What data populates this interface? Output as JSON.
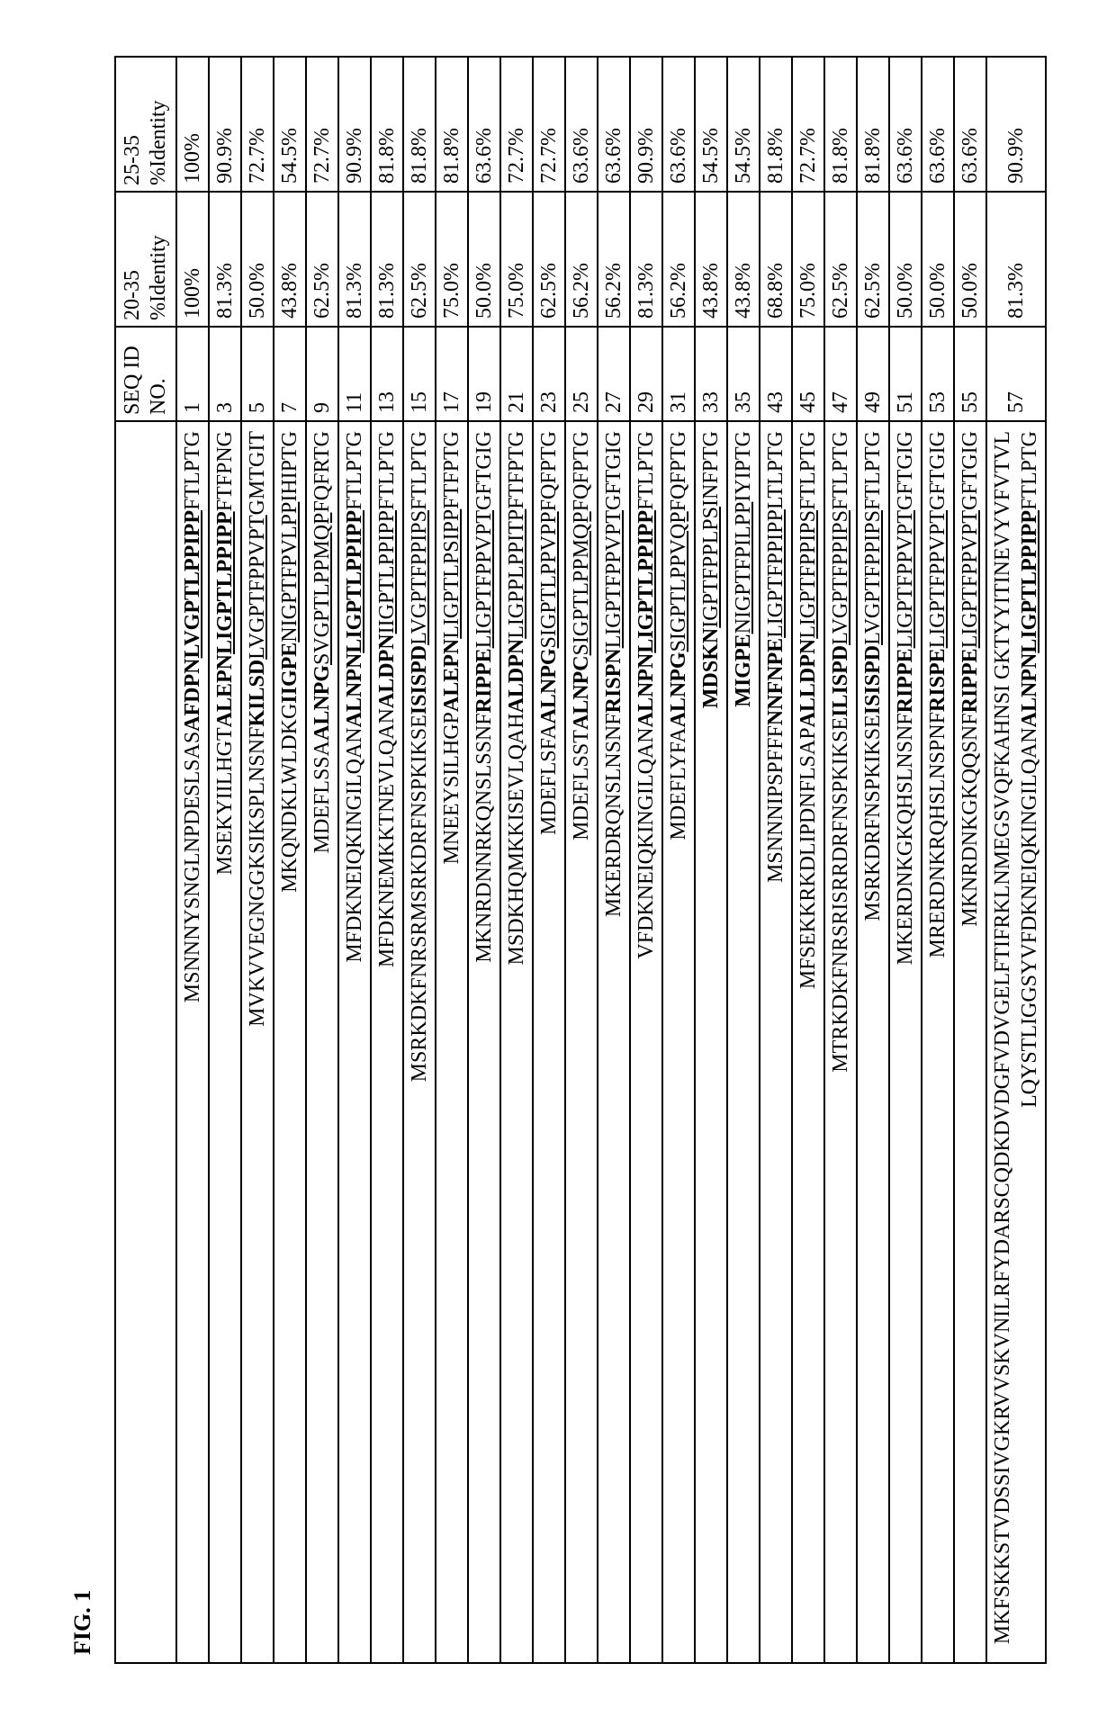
{
  "figure_title": "FIG. 1",
  "table": {
    "columns": [
      {
        "key": "sequence",
        "label": ""
      },
      {
        "key": "seq_id",
        "label": "SEQ ID NO."
      },
      {
        "key": "pct_20_35",
        "label": "20-35 %Identity"
      },
      {
        "key": "pct_25_35",
        "label": "25-35 %Identity"
      }
    ],
    "rows": [
      {
        "seq_id": "1",
        "pct_20_35": "100%",
        "pct_25_35": "100%",
        "segments": [
          {
            "text": "MSNNNYSNGLNPDESLSAS",
            "style": ""
          },
          {
            "text": "AFDPN",
            "style": "bold"
          },
          {
            "text": "LVGPTLPPIPP",
            "style": "bu"
          },
          {
            "text": "FTLPTG",
            "style": ""
          }
        ]
      },
      {
        "seq_id": "3",
        "pct_20_35": "81.3%",
        "pct_25_35": "90.9%",
        "segments": [
          {
            "text": "MSEKYIILHGT",
            "style": ""
          },
          {
            "text": "ALEPN",
            "style": "bold"
          },
          {
            "text": "LIGPTLPPIPP",
            "style": "bu"
          },
          {
            "text": "FTFPNG",
            "style": ""
          }
        ]
      },
      {
        "seq_id": "5",
        "pct_20_35": "50.0%",
        "pct_25_35": "72.7%",
        "segments": [
          {
            "text": "MVKVVEGNGGKSIKSPLNSNF",
            "style": ""
          },
          {
            "text": "KILSD",
            "style": "bold"
          },
          {
            "text": "LVGPTFPPVPT",
            "style": "underline"
          },
          {
            "text": "GMTGIT",
            "style": ""
          }
        ]
      },
      {
        "seq_id": "7",
        "pct_20_35": "43.8%",
        "pct_25_35": "54.5%",
        "segments": [
          {
            "text": "MKQNDKLWLDKG",
            "style": ""
          },
          {
            "text": "IIGPE",
            "style": "bold"
          },
          {
            "text": "NIGPTFPVLPP",
            "style": "underline"
          },
          {
            "text": "IHIPTG",
            "style": ""
          }
        ]
      },
      {
        "seq_id": "9",
        "pct_20_35": "62.5%",
        "pct_25_35": "72.7%",
        "segments": [
          {
            "text": "MDEFLSSA",
            "style": ""
          },
          {
            "text": "ALNPG",
            "style": "bold"
          },
          {
            "text": "SVGPTLPPMQP",
            "style": "underline"
          },
          {
            "text": "FQFRTG",
            "style": ""
          }
        ]
      },
      {
        "seq_id": "11",
        "pct_20_35": "81.3%",
        "pct_25_35": "90.9%",
        "segments": [
          {
            "text": "MFDKNEIQKINGILQAN",
            "style": ""
          },
          {
            "text": "ALNPN",
            "style": "bold"
          },
          {
            "text": "LIGPTLPPIPP",
            "style": "bu"
          },
          {
            "text": "FTLPTG",
            "style": ""
          }
        ]
      },
      {
        "seq_id": "13",
        "pct_20_35": "81.3%",
        "pct_25_35": "81.8%",
        "segments": [
          {
            "text": "MFDKNEMKKTNEVLQAN",
            "style": ""
          },
          {
            "text": "ALDPN",
            "style": "bold"
          },
          {
            "text": "IIGPTLPPIPP",
            "style": "underline"
          },
          {
            "text": "FTLPTG",
            "style": ""
          }
        ]
      },
      {
        "seq_id": "15",
        "pct_20_35": "62.5%",
        "pct_25_35": "81.8%",
        "segments": [
          {
            "text": "MSRKDKFNRSRMSRKDRFNSPKIKSE",
            "style": ""
          },
          {
            "text": "ISISPD",
            "style": "bold"
          },
          {
            "text": "LVGPTFPPIPS",
            "style": "underline"
          },
          {
            "text": "FTLPTG",
            "style": ""
          }
        ]
      },
      {
        "seq_id": "17",
        "pct_20_35": "75.0%",
        "pct_25_35": "81.8%",
        "segments": [
          {
            "text": "MNEEYSILHGP",
            "style": ""
          },
          {
            "text": "ALEPN",
            "style": "bold"
          },
          {
            "text": "LIGPTLPSIPP",
            "style": "underline"
          },
          {
            "text": "FTFPTG",
            "style": ""
          }
        ]
      },
      {
        "seq_id": "19",
        "pct_20_35": "50.0%",
        "pct_25_35": "63.6%",
        "segments": [
          {
            "text": "MKNRDNNRKQNSLSSNF",
            "style": ""
          },
          {
            "text": "RIPPE",
            "style": "bold"
          },
          {
            "text": "LIGPTFPPVPT",
            "style": "underline"
          },
          {
            "text": "GFTGIG",
            "style": ""
          }
        ]
      },
      {
        "seq_id": "21",
        "pct_20_35": "75.0%",
        "pct_25_35": "72.7%",
        "segments": [
          {
            "text": "MSDKHQMKKISEVLQAH",
            "style": ""
          },
          {
            "text": "ALDPN",
            "style": "bold"
          },
          {
            "text": "LIGPPLPPITP",
            "style": "underline"
          },
          {
            "text": "FTFPTG",
            "style": ""
          }
        ]
      },
      {
        "seq_id": "23",
        "pct_20_35": "62.5%",
        "pct_25_35": "72.7%",
        "segments": [
          {
            "text": "MDEFLSFA",
            "style": ""
          },
          {
            "text": "ALNPG",
            "style": "bold"
          },
          {
            "text": "SIGPTLPPVPP",
            "style": "underline"
          },
          {
            "text": "FQFPTG",
            "style": ""
          }
        ]
      },
      {
        "seq_id": "25",
        "pct_20_35": "56.2%",
        "pct_25_35": "63.6%",
        "segments": [
          {
            "text": "MDEFLSST",
            "style": ""
          },
          {
            "text": "ALNPC",
            "style": "bold"
          },
          {
            "text": "SIGPTLPPMQP",
            "style": "underline"
          },
          {
            "text": "FQFPTG",
            "style": ""
          }
        ]
      },
      {
        "seq_id": "27",
        "pct_20_35": "56.2%",
        "pct_25_35": "63.6%",
        "segments": [
          {
            "text": "MKERDRQNSLNSNF",
            "style": ""
          },
          {
            "text": "RISPN",
            "style": "bold"
          },
          {
            "text": "LIGPTFPPVPT",
            "style": "underline"
          },
          {
            "text": "GFTGIG",
            "style": ""
          }
        ]
      },
      {
        "seq_id": "29",
        "pct_20_35": "81.3%",
        "pct_25_35": "90.9%",
        "segments": [
          {
            "text": "VFDKNEIQKINGILQAN",
            "style": ""
          },
          {
            "text": "ALNPN",
            "style": "bold"
          },
          {
            "text": "LIGPTLPPIPP",
            "style": "bu"
          },
          {
            "text": "FTLPTG",
            "style": ""
          }
        ]
      },
      {
        "seq_id": "31",
        "pct_20_35": "56.2%",
        "pct_25_35": "63.6%",
        "segments": [
          {
            "text": "MDEFLYFA",
            "style": ""
          },
          {
            "text": "ALNPG",
            "style": "bold"
          },
          {
            "text": "SIGPTLPPVQP",
            "style": "underline"
          },
          {
            "text": "FQFPTG",
            "style": ""
          }
        ]
      },
      {
        "seq_id": "33",
        "pct_20_35": "43.8%",
        "pct_25_35": "54.5%",
        "segments": [
          {
            "text": "MDSKN",
            "style": "bold"
          },
          {
            "text": "IGPTFPPLPS",
            "style": "underline"
          },
          {
            "text": "INFPTG",
            "style": ""
          }
        ]
      },
      {
        "seq_id": "35",
        "pct_20_35": "43.8%",
        "pct_25_35": "54.5%",
        "segments": [
          {
            "text": "MIGPE",
            "style": "bold"
          },
          {
            "text": "NIGPTFPILPP",
            "style": "underline"
          },
          {
            "text": "IYIPTG",
            "style": ""
          }
        ]
      },
      {
        "seq_id": "43",
        "pct_20_35": "68.8%",
        "pct_25_35": "81.8%",
        "segments": [
          {
            "text": "MSNNNIPSPFFF",
            "style": ""
          },
          {
            "text": "NNFNPE",
            "style": "bold"
          },
          {
            "text": "LIGPTFPPIPP",
            "style": "underline"
          },
          {
            "text": "LTLPTG",
            "style": ""
          }
        ]
      },
      {
        "seq_id": "45",
        "pct_20_35": "75.0%",
        "pct_25_35": "72.7%",
        "segments": [
          {
            "text": "MFSEKKRKDLIPDNFLSAP",
            "style": ""
          },
          {
            "text": "ALLDPN",
            "style": "bold"
          },
          {
            "text": "LIGPTFPPIPS",
            "style": "underline"
          },
          {
            "text": "FTLPTG",
            "style": ""
          }
        ]
      },
      {
        "seq_id": "47",
        "pct_20_35": "62.5%",
        "pct_25_35": "81.8%",
        "segments": [
          {
            "text": "MTRKDKFNRSRISRRDRFNSPKIKSE",
            "style": ""
          },
          {
            "text": "ILISPD",
            "style": "bold"
          },
          {
            "text": "LVGPTFPPIPS",
            "style": "underline"
          },
          {
            "text": "FTLPTG",
            "style": ""
          }
        ]
      },
      {
        "seq_id": "49",
        "pct_20_35": "62.5%",
        "pct_25_35": "81.8%",
        "segments": [
          {
            "text": "MSRKDRFNSPKIKSE",
            "style": ""
          },
          {
            "text": "ISISPD",
            "style": "bold"
          },
          {
            "text": "LVGPTFPPIPS",
            "style": "underline"
          },
          {
            "text": "FTLPTG",
            "style": ""
          }
        ]
      },
      {
        "seq_id": "51",
        "pct_20_35": "50.0%",
        "pct_25_35": "63.6%",
        "segments": [
          {
            "text": "MKERDNKGKQHSLNSNF",
            "style": ""
          },
          {
            "text": "RIPPE",
            "style": "bold"
          },
          {
            "text": "LIGPTFPPVPT",
            "style": "underline"
          },
          {
            "text": "GFTGIG",
            "style": ""
          }
        ]
      },
      {
        "seq_id": "53",
        "pct_20_35": "50.0%",
        "pct_25_35": "63.6%",
        "segments": [
          {
            "text": "MRERDNKRQHSLNSPNF",
            "style": ""
          },
          {
            "text": "RISPE",
            "style": "bold"
          },
          {
            "text": "LIGPTFPPVPT",
            "style": "underline"
          },
          {
            "text": "GFTGIG",
            "style": ""
          }
        ]
      },
      {
        "seq_id": "55",
        "pct_20_35": "50.0%",
        "pct_25_35": "63.6%",
        "segments": [
          {
            "text": "MKNRDNKGKQQSNF",
            "style": ""
          },
          {
            "text": "RIPPE",
            "style": "bold"
          },
          {
            "text": "LIGPTFPPVPT",
            "style": "underline"
          },
          {
            "text": "GFTGIG",
            "style": ""
          }
        ]
      },
      {
        "seq_id": "57",
        "pct_20_35": "81.3%",
        "pct_25_35": "90.9%",
        "segments": [
          {
            "text": "MKFSKKSTVDSSIVGKRVVSKVNILRFYDARSCQDKDVDGFVDVGELFTIFRKLNMEGSVQFKAHNSI GKTYYITINEVYVFVTVLLQYSTLIGGSYVFDKNEIQKINGILQAN",
            "style": ""
          },
          {
            "text": "ALNPN",
            "style": "bold"
          },
          {
            "text": "LIGPTLPPIPP",
            "style": "bu"
          },
          {
            "text": "FTLPTG",
            "style": ""
          }
        ]
      }
    ]
  }
}
